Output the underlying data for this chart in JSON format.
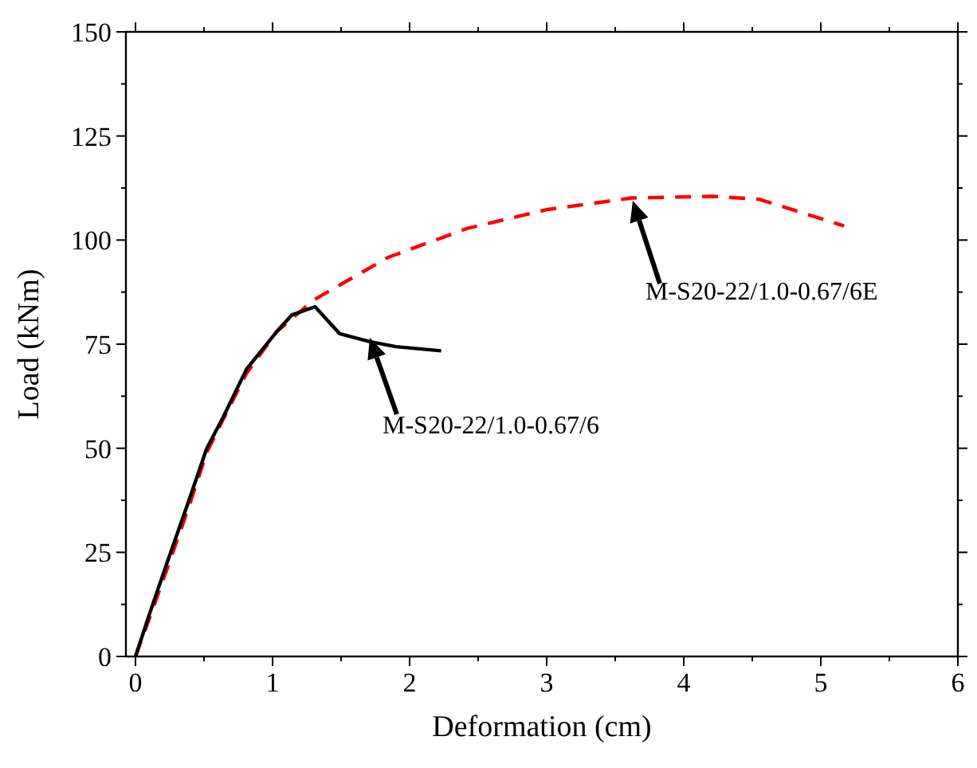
{
  "chart_data": {
    "type": "line",
    "xlabel": "Deformation (cm)",
    "ylabel": "Load (kNm)",
    "xlim": [
      -0.07,
      6
    ],
    "xticks": [
      0,
      1,
      2,
      3,
      4,
      5,
      6
    ],
    "ylim": [
      0,
      150
    ],
    "yticks": [
      0,
      25,
      50,
      75,
      100,
      125,
      150
    ],
    "grid": false,
    "marker": "none",
    "series": [
      {
        "color": "#ff0000",
        "line_style": "dashed",
        "x": [
          0,
          0.1,
          0.23,
          0.39,
          0.52,
          0.64,
          0.81,
          1.03,
          1.3,
          1.84,
          2.42,
          3.0,
          3.62,
          4.21,
          4.55,
          5.17
        ],
        "values": [
          0,
          9,
          21,
          36,
          49,
          57,
          68,
          78,
          85.6,
          95.8,
          102.8,
          107.3,
          110.1,
          110.5,
          109.8,
          103.4
        ]
      },
      {
        "color": "#000000",
        "line_style": "solid",
        "x": [
          0,
          0.1,
          0.23,
          0.39,
          0.52,
          0.64,
          0.81,
          1.03,
          1.14,
          1.31,
          1.49,
          1.71,
          1.9,
          2.23
        ],
        "values": [
          0,
          10,
          22.5,
          37.5,
          50,
          57.5,
          69,
          78,
          82,
          84,
          77.5,
          75.6,
          74.4,
          73.4
        ]
      }
    ],
    "annotations": [
      "M-S20-22/1.0-0.67/6",
      "M-S20-22/1.0-0.67/6E"
    ]
  }
}
